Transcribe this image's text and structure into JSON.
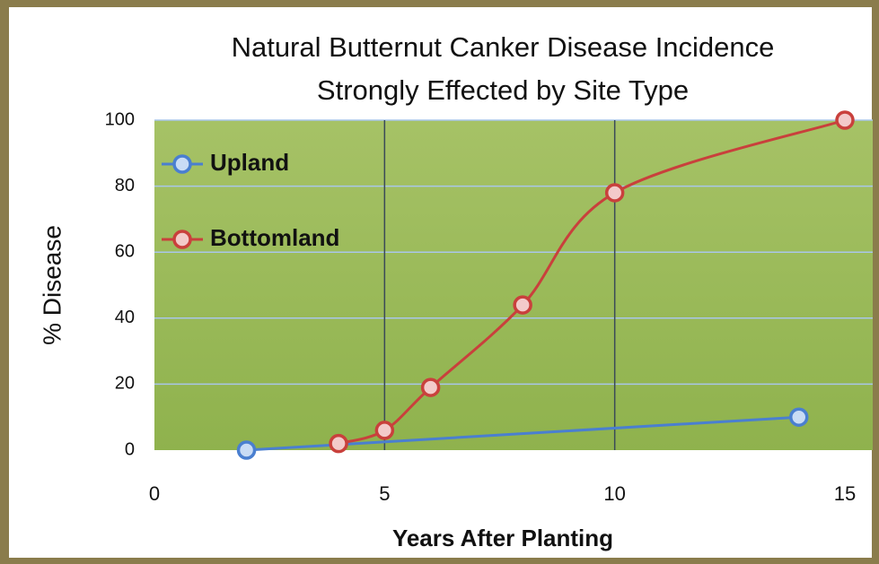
{
  "chart_data": {
    "type": "line",
    "title": [
      "Natural Butternut Canker Disease Incidence",
      "Strongly Effected by Site Type"
    ],
    "x_label": "Years After Planting",
    "y_label": "% Disease",
    "series": [
      {
        "name": "Upland",
        "color": "#4a7fd0",
        "marker_fill": "#c9dcf5",
        "smooth": false,
        "x": [
          2,
          14
        ],
        "values": [
          0,
          10
        ]
      },
      {
        "name": "Bottomland",
        "color": "#c9403c",
        "marker_fill": "#f3caca",
        "smooth": true,
        "x": [
          4,
          5,
          6,
          8,
          10,
          15
        ],
        "values": [
          2,
          6,
          19,
          44,
          78,
          100
        ]
      }
    ],
    "xlim": [
      0,
      15
    ],
    "xticks": [
      0,
      5,
      10,
      15
    ],
    "ylim": [
      0,
      100
    ],
    "yticks": [
      0,
      20,
      40,
      60,
      80,
      100
    ],
    "grid": true,
    "legend": "upper left",
    "plot_color": "#9bbb59"
  }
}
